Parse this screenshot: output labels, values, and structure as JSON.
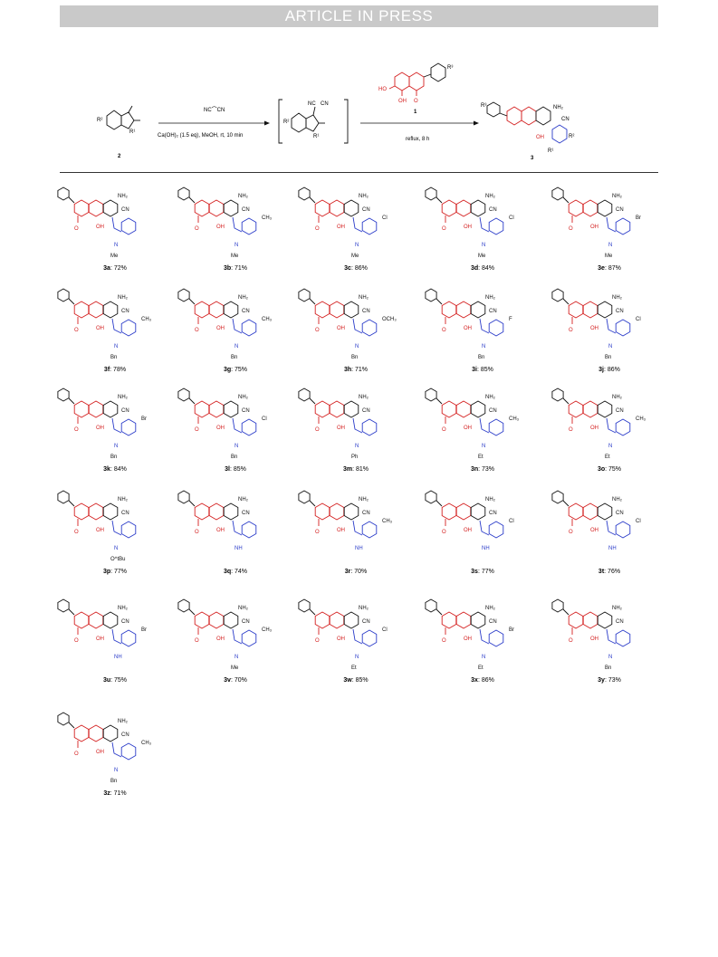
{
  "header": {
    "banner_text": "ARTICLE IN PRESS"
  },
  "scheme": {
    "reagent_top": "NC⌒CN",
    "conditions_1": "Ca(OH)₂ (1.5 eq), MeOH, rt, 10 min",
    "compound_1_label": "1",
    "conditions_2": "reflux, 8 h",
    "compound_2_label": "2",
    "compound_3_label": "3",
    "r1": "R¹",
    "r2": "R²",
    "r3": "R³"
  },
  "products": [
    {
      "id": "3a",
      "yield": "72%",
      "sub": "",
      "n": "Me"
    },
    {
      "id": "3b",
      "yield": "71%",
      "sub": "CH₃",
      "n": "Me"
    },
    {
      "id": "3c",
      "yield": "86%",
      "sub": "Cl",
      "n": "Me"
    },
    {
      "id": "3d",
      "yield": "84%",
      "sub": "Cl",
      "n": "Me"
    },
    {
      "id": "3e",
      "yield": "87%",
      "sub": "Br",
      "n": "Me"
    },
    {
      "id": "3f",
      "yield": "78%",
      "sub": "CH₃",
      "n": "Bn"
    },
    {
      "id": "3g",
      "yield": "75%",
      "sub": "CH₃",
      "n": "Bn"
    },
    {
      "id": "3h",
      "yield": "71%",
      "sub": "OCH₃",
      "n": "Bn"
    },
    {
      "id": "3i",
      "yield": "85%",
      "sub": "F",
      "n": "Bn"
    },
    {
      "id": "3j",
      "yield": "86%",
      "sub": "Cl",
      "n": "Bn"
    },
    {
      "id": "3k",
      "yield": "84%",
      "sub": "Br",
      "n": "Bn"
    },
    {
      "id": "3l",
      "yield": "85%",
      "sub": "Cl",
      "n": "Bn"
    },
    {
      "id": "3m",
      "yield": "81%",
      "sub": "",
      "n": "Ph"
    },
    {
      "id": "3n",
      "yield": "73%",
      "sub": "CH₃",
      "n": "Et"
    },
    {
      "id": "3o",
      "yield": "75%",
      "sub": "CH₃",
      "n": "Et"
    },
    {
      "id": "3p",
      "yield": "77%",
      "sub": "",
      "n": "O^tBu"
    },
    {
      "id": "3q",
      "yield": "74%",
      "sub": "",
      "n": "H"
    },
    {
      "id": "3r",
      "yield": "70%",
      "sub": "CH₃",
      "n": "H"
    },
    {
      "id": "3s",
      "yield": "77%",
      "sub": "Cl",
      "n": "H"
    },
    {
      "id": "3t",
      "yield": "76%",
      "sub": "Cl",
      "n": "H"
    },
    {
      "id": "3u",
      "yield": "75%",
      "sub": "Br",
      "n": "H"
    },
    {
      "id": "3v",
      "yield": "70%",
      "sub": "CH₃",
      "n": "Me"
    },
    {
      "id": "3w",
      "yield": "85%",
      "sub": "Cl",
      "n": "Et"
    },
    {
      "id": "3x",
      "yield": "86%",
      "sub": "Br",
      "n": "Et"
    },
    {
      "id": "3y",
      "yield": "73%",
      "sub": "",
      "n": "Bn"
    },
    {
      "id": "3z",
      "yield": "71%",
      "sub": "CH₃",
      "n": "Bn"
    }
  ],
  "colors": {
    "red": "#d42020",
    "blue": "#2b3cc9",
    "black": "#111111",
    "banner": "#c9c9c9"
  }
}
